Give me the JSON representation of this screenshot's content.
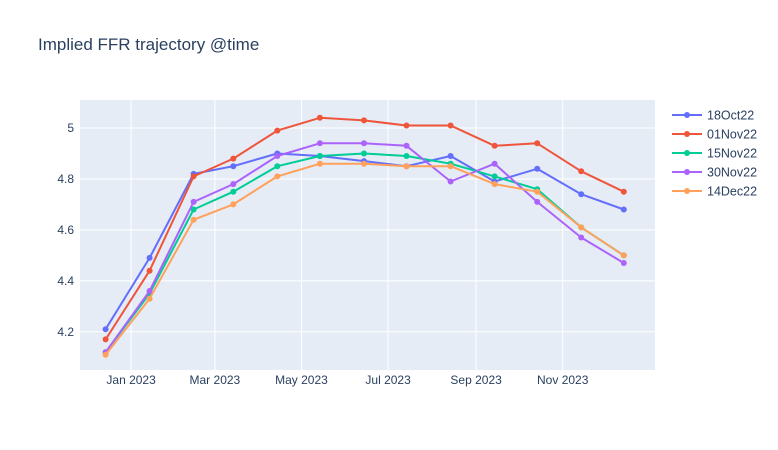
{
  "chart_data": {
    "type": "line",
    "title": "Implied FFR trajectory @time",
    "xlabel": "",
    "ylabel": "",
    "x": [
      "2022-12-14",
      "2023-01-14",
      "2023-02-14",
      "2023-03-14",
      "2023-04-14",
      "2023-05-14",
      "2023-06-14",
      "2023-07-14",
      "2023-08-14",
      "2023-09-14",
      "2023-10-14",
      "2023-11-14",
      "2023-12-14"
    ],
    "x_ticks": [
      {
        "date": "2023-01-01",
        "label": "Jan 2023"
      },
      {
        "date": "2023-03-01",
        "label": "Mar 2023"
      },
      {
        "date": "2023-05-01",
        "label": "May 2023"
      },
      {
        "date": "2023-07-01",
        "label": "Jul 2023"
      },
      {
        "date": "2023-09-01",
        "label": "Sep 2023"
      },
      {
        "date": "2023-11-01",
        "label": "Nov 2023"
      }
    ],
    "xlim": [
      "2022-11-26",
      "2024-01-05"
    ],
    "y_ticks": [
      4.2,
      4.4,
      4.6,
      4.8,
      5
    ],
    "y_tick_labels": [
      "4.2",
      "4.4",
      "4.6",
      "4.8",
      "5"
    ],
    "ylim": [
      4.05,
      5.11
    ],
    "grid": true,
    "legend_position": "top-right",
    "series": [
      {
        "name": "18Oct22",
        "color": "#636efa",
        "values": [
          4.21,
          4.49,
          4.82,
          4.85,
          4.9,
          4.89,
          4.87,
          4.85,
          4.89,
          4.79,
          4.84,
          4.74,
          4.68
        ]
      },
      {
        "name": "01Nov22",
        "color": "#ef553b",
        "values": [
          4.17,
          4.44,
          4.81,
          4.88,
          4.99,
          5.04,
          5.03,
          5.01,
          5.01,
          4.93,
          4.94,
          4.83,
          4.75
        ]
      },
      {
        "name": "15Nov22",
        "color": "#00cc96",
        "values": [
          4.12,
          4.35,
          4.68,
          4.75,
          4.85,
          4.89,
          4.9,
          4.89,
          4.86,
          4.81,
          4.76,
          4.61,
          4.5
        ]
      },
      {
        "name": "30Nov22",
        "color": "#ab63fa",
        "values": [
          4.12,
          4.36,
          4.71,
          4.78,
          4.89,
          4.94,
          4.94,
          4.93,
          4.79,
          4.86,
          4.71,
          4.57,
          4.47
        ]
      },
      {
        "name": "14Dec22",
        "color": "#ffa15a",
        "values": [
          4.11,
          4.33,
          4.64,
          4.7,
          4.81,
          4.86,
          4.86,
          4.85,
          4.85,
          4.78,
          4.75,
          4.61,
          4.5
        ]
      }
    ]
  },
  "colors": {
    "plot_background": "#e5ecf6",
    "grid": "#ffffff",
    "text": "#2a3f5f"
  }
}
